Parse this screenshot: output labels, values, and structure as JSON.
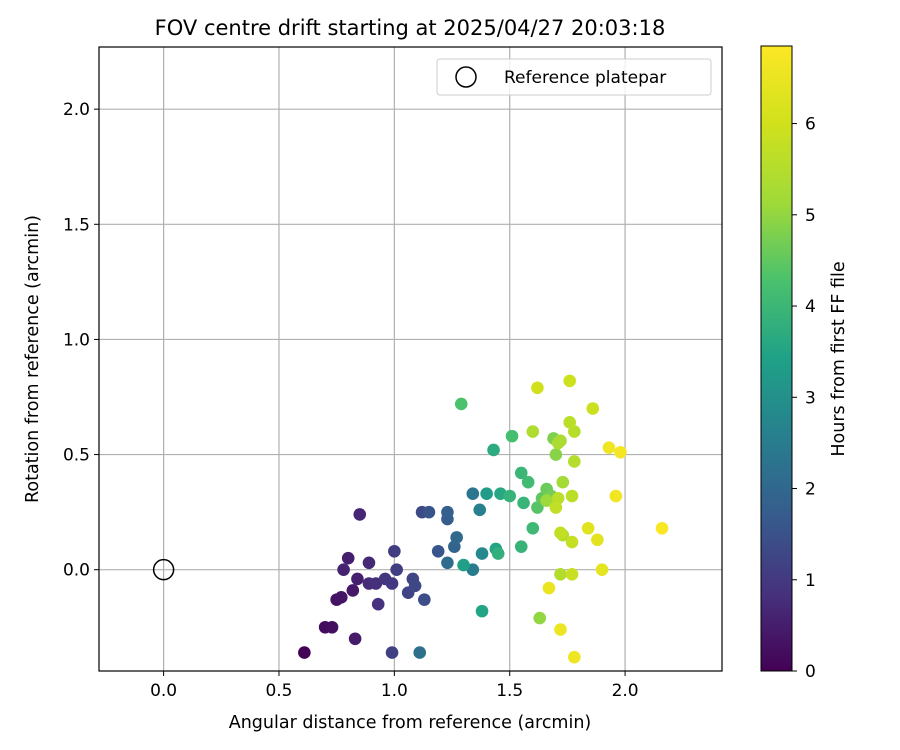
{
  "chart_data": {
    "type": "scatter",
    "title": "FOV centre drift starting at 2025/04/27 20:03:18",
    "xlabel": "Angular distance from reference (arcmin)",
    "ylabel": "Rotation from reference (arcmin)",
    "xlim": [
      -0.28,
      2.42
    ],
    "ylim": [
      -0.44,
      2.27
    ],
    "xticks": [
      0.0,
      0.5,
      1.0,
      1.5,
      2.0
    ],
    "xtick_labels": [
      "0.0",
      "0.5",
      "1.0",
      "1.5",
      "2.0"
    ],
    "yticks": [
      0.0,
      0.5,
      1.0,
      1.5,
      2.0
    ],
    "ytick_labels": [
      "0.0",
      "0.5",
      "1.0",
      "1.5",
      "2.0"
    ],
    "grid": true,
    "legend": {
      "position": "top-right",
      "entries": [
        "Reference platepar"
      ]
    },
    "reference_point": {
      "x": 0.0,
      "y": 0.0,
      "label": "Reference platepar",
      "marker": "open-circle"
    },
    "colorbar": {
      "label": "Hours from first FF file",
      "colormap": "viridis",
      "range": [
        0,
        6.85
      ],
      "ticks": [
        0,
        1,
        2,
        3,
        4,
        5,
        6
      ],
      "tick_labels": [
        "0",
        "1",
        "2",
        "3",
        "4",
        "5",
        "6"
      ]
    },
    "points": [
      {
        "x": 0.61,
        "y": -0.36,
        "c": 0.05
      },
      {
        "x": 0.7,
        "y": -0.25,
        "c": 0.2
      },
      {
        "x": 0.73,
        "y": -0.25,
        "c": 0.25
      },
      {
        "x": 0.75,
        "y": -0.13,
        "c": 0.3
      },
      {
        "x": 0.77,
        "y": -0.12,
        "c": 0.35
      },
      {
        "x": 0.82,
        "y": -0.09,
        "c": 0.4
      },
      {
        "x": 0.83,
        "y": -0.3,
        "c": 0.45
      },
      {
        "x": 0.8,
        "y": 0.05,
        "c": 0.5
      },
      {
        "x": 0.84,
        "y": -0.04,
        "c": 0.55
      },
      {
        "x": 0.78,
        "y": 0.0,
        "c": 0.6
      },
      {
        "x": 0.85,
        "y": 0.24,
        "c": 0.65
      },
      {
        "x": 0.89,
        "y": 0.03,
        "c": 0.7
      },
      {
        "x": 0.89,
        "y": -0.06,
        "c": 0.75
      },
      {
        "x": 0.92,
        "y": -0.06,
        "c": 0.8
      },
      {
        "x": 0.93,
        "y": -0.15,
        "c": 0.85
      },
      {
        "x": 0.96,
        "y": -0.04,
        "c": 0.95
      },
      {
        "x": 0.99,
        "y": -0.06,
        "c": 1.0
      },
      {
        "x": 1.0,
        "y": 0.08,
        "c": 1.05
      },
      {
        "x": 1.01,
        "y": 0.0,
        "c": 1.1
      },
      {
        "x": 0.99,
        "y": -0.36,
        "c": 1.15
      },
      {
        "x": 1.06,
        "y": -0.1,
        "c": 1.2
      },
      {
        "x": 1.08,
        "y": -0.04,
        "c": 1.25
      },
      {
        "x": 1.09,
        "y": -0.07,
        "c": 1.3
      },
      {
        "x": 1.12,
        "y": 0.25,
        "c": 1.35
      },
      {
        "x": 1.13,
        "y": -0.13,
        "c": 1.4
      },
      {
        "x": 1.15,
        "y": 0.25,
        "c": 1.55
      },
      {
        "x": 1.19,
        "y": 0.08,
        "c": 1.6
      },
      {
        "x": 1.23,
        "y": 0.22,
        "c": 1.75
      },
      {
        "x": 1.23,
        "y": 0.25,
        "c": 1.8
      },
      {
        "x": 1.26,
        "y": 0.1,
        "c": 1.9
      },
      {
        "x": 1.27,
        "y": 0.14,
        "c": 2.0
      },
      {
        "x": 1.23,
        "y": 0.03,
        "c": 2.1
      },
      {
        "x": 1.11,
        "y": -0.36,
        "c": 2.2
      },
      {
        "x": 1.34,
        "y": 0.33,
        "c": 2.35
      },
      {
        "x": 1.34,
        "y": 0.0,
        "c": 2.5
      },
      {
        "x": 1.37,
        "y": 0.26,
        "c": 2.6
      },
      {
        "x": 1.38,
        "y": 0.07,
        "c": 2.8
      },
      {
        "x": 1.4,
        "y": 0.33,
        "c": 3.3
      },
      {
        "x": 1.3,
        "y": 0.02,
        "c": 3.4
      },
      {
        "x": 1.38,
        "y": -0.18,
        "c": 3.5
      },
      {
        "x": 1.44,
        "y": 0.09,
        "c": 3.5
      },
      {
        "x": 1.46,
        "y": 0.33,
        "c": 3.6
      },
      {
        "x": 1.43,
        "y": 0.52,
        "c": 3.7
      },
      {
        "x": 1.45,
        "y": 0.07,
        "c": 3.8
      },
      {
        "x": 1.5,
        "y": 0.32,
        "c": 3.9
      },
      {
        "x": 1.55,
        "y": 0.1,
        "c": 3.9
      },
      {
        "x": 1.56,
        "y": 0.29,
        "c": 3.95
      },
      {
        "x": 1.55,
        "y": 0.42,
        "c": 4.0
      },
      {
        "x": 1.6,
        "y": 0.18,
        "c": 4.05
      },
      {
        "x": 1.58,
        "y": 0.38,
        "c": 4.1
      },
      {
        "x": 1.51,
        "y": 0.58,
        "c": 4.2
      },
      {
        "x": 1.29,
        "y": 0.72,
        "c": 4.3
      },
      {
        "x": 1.62,
        "y": 0.27,
        "c": 4.4
      },
      {
        "x": 1.64,
        "y": 0.31,
        "c": 4.5
      },
      {
        "x": 1.66,
        "y": 0.35,
        "c": 4.6
      },
      {
        "x": 1.68,
        "y": 0.32,
        "c": 4.7
      },
      {
        "x": 1.69,
        "y": 0.57,
        "c": 4.8
      },
      {
        "x": 1.7,
        "y": 0.5,
        "c": 4.9
      },
      {
        "x": 1.63,
        "y": -0.21,
        "c": 5.0
      },
      {
        "x": 1.66,
        "y": 0.3,
        "c": 5.1
      },
      {
        "x": 1.73,
        "y": 0.38,
        "c": 5.2
      },
      {
        "x": 1.72,
        "y": 0.56,
        "c": 5.3
      },
      {
        "x": 1.71,
        "y": 0.55,
        "c": 5.35
      },
      {
        "x": 1.6,
        "y": 0.6,
        "c": 5.4
      },
      {
        "x": 1.72,
        "y": -0.02,
        "c": 5.45
      },
      {
        "x": 1.73,
        "y": 0.15,
        "c": 5.5
      },
      {
        "x": 1.78,
        "y": 0.47,
        "c": 5.5
      },
      {
        "x": 1.78,
        "y": 0.6,
        "c": 5.55
      },
      {
        "x": 1.77,
        "y": 0.32,
        "c": 5.6
      },
      {
        "x": 1.76,
        "y": 0.64,
        "c": 5.6
      },
      {
        "x": 1.71,
        "y": 0.31,
        "c": 5.65
      },
      {
        "x": 1.7,
        "y": 0.27,
        "c": 5.7
      },
      {
        "x": 1.72,
        "y": 0.16,
        "c": 5.75
      },
      {
        "x": 1.77,
        "y": 0.12,
        "c": 5.8
      },
      {
        "x": 1.77,
        "y": -0.02,
        "c": 5.85
      },
      {
        "x": 1.86,
        "y": 0.7,
        "c": 5.9
      },
      {
        "x": 1.76,
        "y": 0.82,
        "c": 5.95
      },
      {
        "x": 1.62,
        "y": 0.79,
        "c": 6.0
      },
      {
        "x": 1.84,
        "y": 0.18,
        "c": 6.3
      },
      {
        "x": 1.88,
        "y": 0.13,
        "c": 6.35
      },
      {
        "x": 1.9,
        "y": 0.0,
        "c": 6.4
      },
      {
        "x": 1.67,
        "y": -0.08,
        "c": 6.5
      },
      {
        "x": 1.72,
        "y": -0.26,
        "c": 6.55
      },
      {
        "x": 1.78,
        "y": -0.38,
        "c": 6.6
      },
      {
        "x": 1.93,
        "y": 0.53,
        "c": 6.6
      },
      {
        "x": 1.96,
        "y": 0.32,
        "c": 6.65
      },
      {
        "x": 1.98,
        "y": 0.51,
        "c": 6.7
      },
      {
        "x": 2.16,
        "y": 0.18,
        "c": 6.8
      }
    ]
  }
}
